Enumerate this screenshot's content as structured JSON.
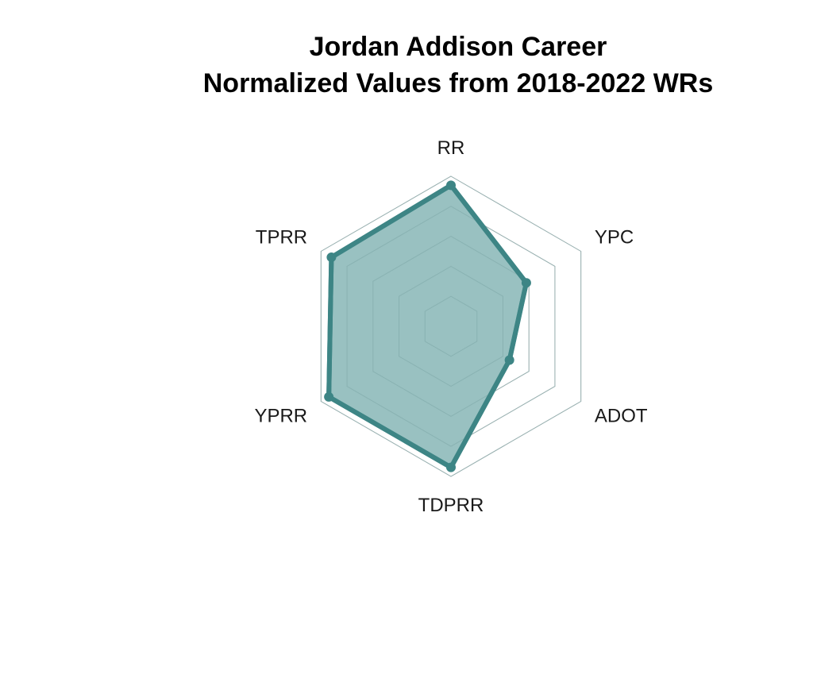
{
  "chart_data": {
    "type": "radar",
    "title_lines": [
      "Jordan Addison Career",
      "Normalized Values from 2018-2022 WRs"
    ],
    "axes": [
      "RR",
      "YPC",
      "ADOT",
      "TDPRR",
      "YPRR",
      "TPRR"
    ],
    "series": [
      {
        "values": [
          0.94,
          0.58,
          0.45,
          0.94,
          0.94,
          0.92
        ]
      }
    ],
    "range": [
      0,
      1
    ],
    "grid_levels": 5,
    "grid": true,
    "colors": {
      "series_line": "#3d8585",
      "series_fill": "#99c1c1",
      "grid": "#bfbfbf"
    }
  }
}
